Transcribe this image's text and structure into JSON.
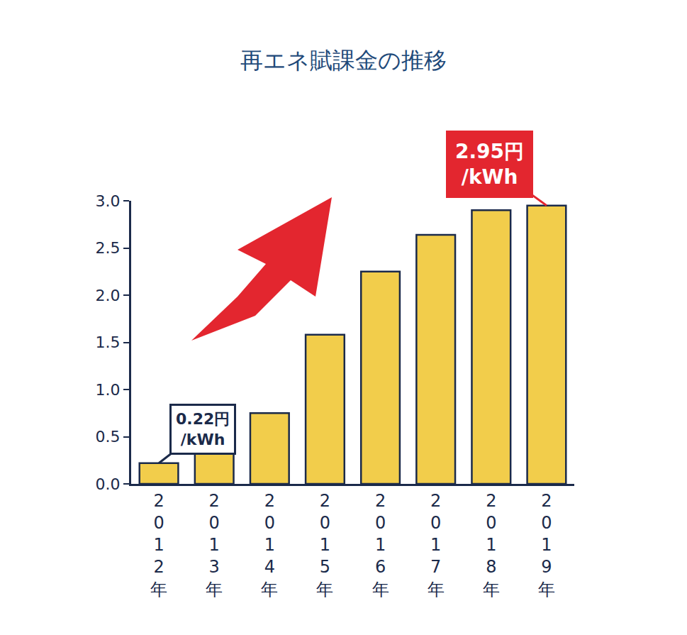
{
  "chart_data": {
    "type": "bar",
    "title": "再エネ賦課金の推移",
    "categories": [
      "2012年",
      "2013年",
      "2014年",
      "2015年",
      "2016年",
      "2017年",
      "2018年",
      "2019年"
    ],
    "values": [
      0.22,
      0.35,
      0.75,
      1.58,
      2.25,
      2.64,
      2.9,
      2.95
    ],
    "color": "#f2cd4b",
    "ylim": [
      0,
      3
    ],
    "yticks": [
      {
        "value": 0,
        "label": "0.0"
      },
      {
        "value": 0.5,
        "label": "0.5"
      },
      {
        "value": 1,
        "label": "1.0"
      },
      {
        "value": 1.5,
        "label": "1.5"
      },
      {
        "value": 2,
        "label": "2.0"
      },
      {
        "value": 2.5,
        "label": "2.5"
      },
      {
        "value": 3,
        "label": "3.0"
      }
    ],
    "grid": false,
    "annotations": [
      {
        "category": "2012年",
        "lines": [
          "0.22円",
          "/kWh"
        ],
        "color": "#ffffff"
      },
      {
        "category": "2019年",
        "lines": [
          "2.95円",
          "/kWh"
        ],
        "color": "#e3262f"
      }
    ]
  }
}
